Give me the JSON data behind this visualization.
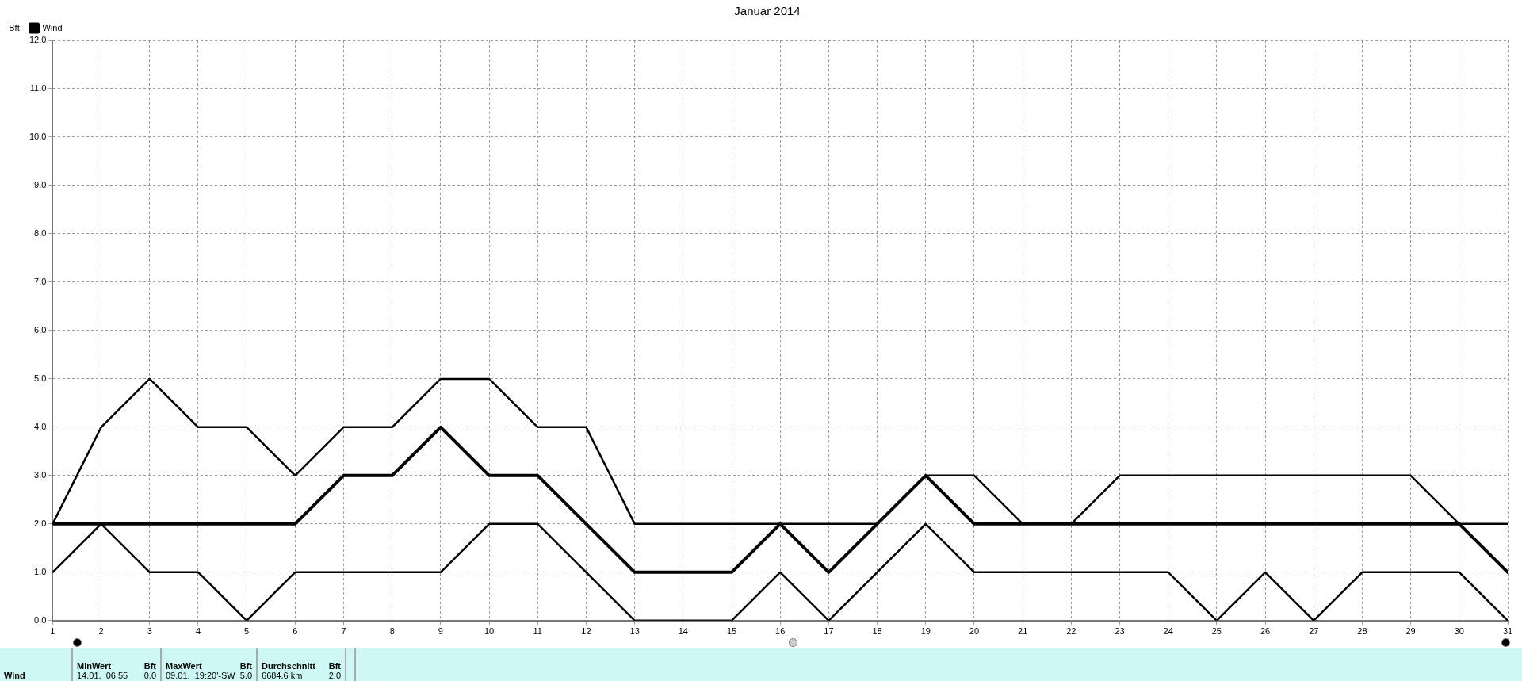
{
  "chart_data": {
    "type": "line",
    "title": "Januar 2014",
    "ylabel": "Bft",
    "x": [
      1,
      2,
      3,
      4,
      5,
      6,
      7,
      8,
      9,
      10,
      11,
      12,
      13,
      14,
      15,
      16,
      17,
      18,
      19,
      20,
      21,
      22,
      23,
      24,
      25,
      26,
      27,
      28,
      29,
      30,
      31
    ],
    "series": [
      {
        "color": "#000000",
        "values": [
          2,
          4,
          5,
          4,
          4,
          3,
          4,
          4,
          5,
          5,
          4,
          4,
          2,
          2,
          2,
          2,
          2,
          2,
          3,
          3,
          2,
          2,
          3,
          3,
          3,
          3,
          3,
          3,
          3,
          2,
          2
        ]
      },
      {
        "name": "Wind",
        "color": "#000000",
        "values": [
          2,
          2,
          2,
          2,
          2,
          2,
          3,
          3,
          4,
          3,
          3,
          2,
          1,
          1,
          1,
          2,
          1,
          2,
          3,
          2,
          2,
          2,
          2,
          2,
          2,
          2,
          2,
          2,
          2,
          2,
          1
        ]
      },
      {
        "color": "#000000",
        "values": [
          1,
          2,
          1,
          1,
          0,
          1,
          1,
          1,
          1,
          2,
          2,
          1,
          0,
          0,
          0,
          1,
          0,
          1,
          2,
          1,
          1,
          1,
          1,
          1,
          0,
          1,
          0,
          1,
          1,
          1,
          0
        ]
      }
    ],
    "xlim": [
      1,
      31
    ],
    "xticks": [
      1,
      2,
      3,
      4,
      5,
      6,
      7,
      8,
      9,
      10,
      11,
      12,
      13,
      14,
      15,
      16,
      17,
      18,
      19,
      20,
      21,
      22,
      23,
      24,
      25,
      26,
      27,
      28,
      29,
      30,
      31
    ],
    "ylim": [
      0,
      12
    ],
    "yticks": [
      {
        "value": 0,
        "label": "0.0"
      },
      {
        "value": 1,
        "label": "1.0"
      },
      {
        "value": 2,
        "label": "2.0"
      },
      {
        "value": 3,
        "label": "3.0"
      },
      {
        "value": 4,
        "label": "4.0"
      },
      {
        "value": 5,
        "label": "5.0"
      },
      {
        "value": 6,
        "label": "6.0"
      },
      {
        "value": 7,
        "label": "7.0"
      },
      {
        "value": 8,
        "label": "8.0"
      },
      {
        "value": 9,
        "label": "9.0"
      },
      {
        "value": 10,
        "label": "10.0"
      },
      {
        "value": 11,
        "label": "11.0"
      },
      {
        "value": 12,
        "label": "12.0"
      }
    ],
    "grid": true,
    "legend": "top left",
    "marker": "none",
    "line_style": "solid",
    "annotations": [
      "Wind",
      "MinWert",
      "Bft",
      "14.01.  06:55",
      "0.0",
      "MaxWert",
      "Bft",
      "09.01.  19:20'-SW",
      "5.0",
      "Durchschnitt",
      "Bft",
      "6684.6 km",
      "2.0"
    ]
  }
}
